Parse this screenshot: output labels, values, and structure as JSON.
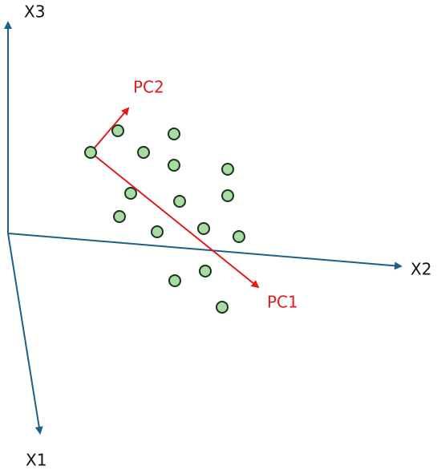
{
  "axes": {
    "x1": "X1",
    "x2": "X2",
    "x3": "X3"
  },
  "components": {
    "pc1": "PC1",
    "pc2": "PC2"
  }
}
